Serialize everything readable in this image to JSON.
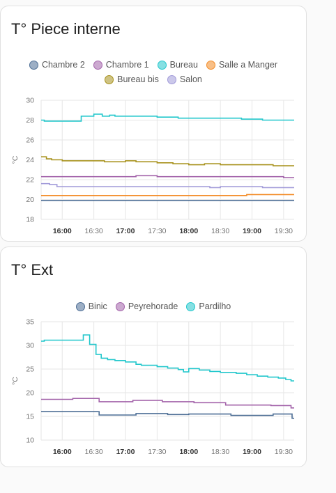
{
  "cards": [
    {
      "title": "T° Piece interne",
      "legend": [
        {
          "name": "Chambre 2",
          "color": "#4d6e95"
        },
        {
          "name": "Chambre 1",
          "color": "#a363aa"
        },
        {
          "name": "Bureau",
          "color": "#22c7cc"
        },
        {
          "name": "Salle a Manger",
          "color": "#f38a24"
        },
        {
          "name": "Bureau bis",
          "color": "#a8921d"
        },
        {
          "name": "Salon",
          "color": "#a19ad9"
        }
      ]
    },
    {
      "title": "T° Ext",
      "legend": [
        {
          "name": "Binic",
          "color": "#4d6e95"
        },
        {
          "name": "Peyrehorade",
          "color": "#a363aa"
        },
        {
          "name": "Pardilho",
          "color": "#22c7cc"
        }
      ]
    }
  ],
  "chart_data": [
    {
      "type": "line",
      "title": "T° Piece interne",
      "ylabel": "°C",
      "xlim": [
        "15:40",
        "19:40"
      ],
      "ylim": [
        18,
        30
      ],
      "y_ticks": [
        "18",
        "20",
        "22",
        "24",
        "26",
        "28",
        "30"
      ],
      "x_ticks": [
        "16:00",
        "16:30",
        "17:00",
        "17:30",
        "18:00",
        "18:30",
        "19:00",
        "19:30"
      ],
      "x_ticks_bold": [
        "16:00",
        "17:00",
        "18:00",
        "19:00"
      ],
      "grid": true,
      "legend_position": "top",
      "step": true,
      "series": [
        {
          "name": "Chambre 2",
          "color": "#4d6e95",
          "x": [
            "15:40",
            "19:40"
          ],
          "y": [
            19.9,
            19.9
          ]
        },
        {
          "name": "Salle a Manger",
          "color": "#f38a24",
          "x": [
            "15:40",
            "18:55",
            "19:40"
          ],
          "y": [
            20.4,
            20.5,
            20.5
          ]
        },
        {
          "name": "Salon",
          "color": "#a19ad9",
          "x": [
            "15:40",
            "15:48",
            "15:55",
            "16:05",
            "18:20",
            "18:30",
            "19:10",
            "19:40"
          ],
          "y": [
            21.6,
            21.5,
            21.3,
            21.3,
            21.2,
            21.3,
            21.2,
            21.2
          ]
        },
        {
          "name": "Chambre 1",
          "color": "#a363aa",
          "x": [
            "15:40",
            "16:50",
            "17:10",
            "17:30",
            "18:00",
            "19:10",
            "19:30",
            "19:40"
          ],
          "y": [
            22.3,
            22.3,
            22.4,
            22.3,
            22.3,
            22.3,
            22.2,
            22.2
          ]
        },
        {
          "name": "Bureau bis",
          "color": "#a8921d",
          "x": [
            "15:40",
            "15:45",
            "15:50",
            "16:00",
            "16:10",
            "16:40",
            "17:00",
            "17:10",
            "17:30",
            "17:45",
            "18:00",
            "18:15",
            "18:30",
            "19:00",
            "19:20",
            "19:40"
          ],
          "y": [
            24.3,
            24.1,
            24.0,
            23.9,
            23.9,
            23.8,
            23.9,
            23.8,
            23.7,
            23.6,
            23.5,
            23.6,
            23.5,
            23.5,
            23.4,
            23.4
          ]
        },
        {
          "name": "Bureau",
          "color": "#22c7cc",
          "x": [
            "15:40",
            "15:43",
            "16:18",
            "16:30",
            "16:38",
            "16:45",
            "16:50",
            "17:10",
            "17:30",
            "17:50",
            "18:00",
            "18:50",
            "19:10",
            "19:40"
          ],
          "y": [
            28.0,
            27.9,
            28.4,
            28.6,
            28.4,
            28.5,
            28.4,
            28.4,
            28.3,
            28.2,
            28.2,
            28.1,
            28.0,
            28.0
          ]
        }
      ]
    },
    {
      "type": "line",
      "title": "T° Ext",
      "ylabel": "°C",
      "xlim": [
        "15:40",
        "19:40"
      ],
      "ylim": [
        10,
        35
      ],
      "y_ticks": [
        "10",
        "15",
        "20",
        "25",
        "30",
        "35"
      ],
      "x_ticks": [
        "16:00",
        "16:30",
        "17:00",
        "17:30",
        "18:00",
        "18:30",
        "19:00",
        "19:30"
      ],
      "x_ticks_bold": [
        "16:00",
        "17:00",
        "18:00",
        "19:00"
      ],
      "grid": true,
      "legend_position": "top",
      "step": true,
      "series": [
        {
          "name": "Binic",
          "color": "#4d6e95",
          "x": [
            "15:40",
            "16:35",
            "17:10",
            "17:40",
            "18:00",
            "18:40",
            "19:20",
            "19:38",
            "19:40"
          ],
          "y": [
            16.0,
            15.3,
            15.6,
            15.4,
            15.5,
            15.2,
            15.5,
            14.6,
            14.6
          ]
        },
        {
          "name": "Peyrehorade",
          "color": "#a363aa",
          "x": [
            "15:40",
            "16:10",
            "16:35",
            "17:07",
            "17:35",
            "18:05",
            "18:35",
            "19:18",
            "19:37",
            "19:40"
          ],
          "y": [
            18.6,
            18.8,
            18.1,
            18.4,
            18.1,
            17.9,
            17.4,
            17.3,
            16.8,
            16.8
          ]
        },
        {
          "name": "Pardilho",
          "color": "#22c7cc",
          "x": [
            "15:40",
            "15:43",
            "16:20",
            "16:26",
            "16:32",
            "16:37",
            "16:43",
            "16:50",
            "17:00",
            "17:10",
            "17:15",
            "17:30",
            "17:40",
            "17:50",
            "17:55",
            "18:00",
            "18:10",
            "18:20",
            "18:30",
            "18:45",
            "18:55",
            "19:05",
            "19:15",
            "19:25",
            "19:32",
            "19:37",
            "19:40"
          ],
          "y": [
            30.9,
            31.1,
            32.2,
            30.2,
            28.1,
            27.3,
            27.0,
            26.8,
            26.5,
            26.0,
            25.8,
            25.5,
            25.2,
            24.9,
            24.4,
            25.1,
            24.8,
            24.5,
            24.3,
            24.1,
            23.8,
            23.5,
            23.3,
            23.1,
            22.8,
            22.5,
            22.5
          ]
        }
      ]
    }
  ]
}
